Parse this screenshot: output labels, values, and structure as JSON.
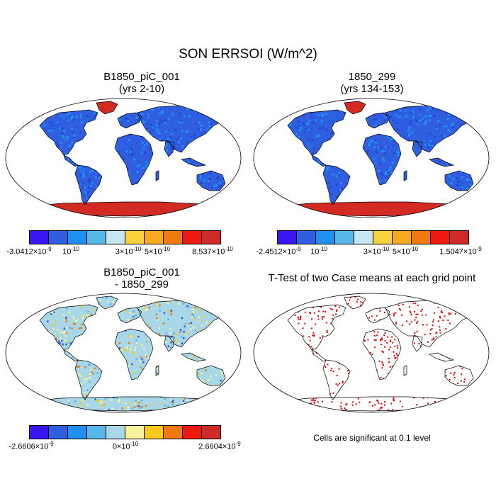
{
  "title": "SON ERRSOI (W/m^2)",
  "panels": {
    "top_left": {
      "title_line1": "B1850_piC_001",
      "title_line2": "(yrs 2-10)",
      "colorbar": {
        "colors": [
          "#3b14f2",
          "#2f5fe0",
          "#1f8ff0",
          "#56b8e8",
          "#c5e6f2",
          "#f8d23a",
          "#f6a920",
          "#f07a10",
          "#ee1a10",
          "#cf2a28"
        ],
        "labels": [
          {
            "mant": "-3.0412×10",
            "exp": "-9"
          },
          {
            "mant": "10",
            "exp": "-10"
          },
          {
            "mant": "3×10",
            "exp": "-10"
          },
          {
            "mant": "5×10",
            "exp": "-10"
          },
          {
            "mant": "8.537×10",
            "exp": "-10"
          }
        ]
      }
    },
    "top_right": {
      "title_line1": "1850_299",
      "title_line2": "(yrs 134-153)",
      "colorbar": {
        "colors": [
          "#3b14f2",
          "#2f5fe0",
          "#1f8ff0",
          "#56b8e8",
          "#c5e6f2",
          "#f8d23a",
          "#f6a920",
          "#f07a10",
          "#ee1a10",
          "#cf2a28"
        ],
        "labels": [
          {
            "mant": "-2.4512×10",
            "exp": "-9"
          },
          {
            "mant": "10",
            "exp": "-10"
          },
          {
            "mant": "3×10",
            "exp": "-10"
          },
          {
            "mant": "5×10",
            "exp": "-10"
          },
          {
            "mant": "1.5047×10",
            "exp": "-9"
          }
        ]
      }
    },
    "bottom_left": {
      "title_line1": "B1850_piC_001",
      "title_line2": "- 1850_299",
      "colorbar": {
        "colors": [
          "#3b14f2",
          "#2f5fe0",
          "#1f8ff0",
          "#56b8e8",
          "#a8d8e8",
          "#f8f29a",
          "#f8c820",
          "#f07a10",
          "#ee1a10",
          "#cf2a28"
        ],
        "labels": [
          {
            "mant": "-2.6606×10",
            "exp": "-9"
          },
          {
            "mant": "0×10",
            "exp": "-10"
          },
          {
            "mant": "2.6604×10",
            "exp": "-9"
          }
        ]
      }
    },
    "bottom_right": {
      "title_line1": "T-Test of two Case means at each grid point",
      "note": "Cells are significant at 0.1 level",
      "marker_color": "#dd0000"
    }
  },
  "colors": {
    "land_blue": "#2f5fe0",
    "land_blue_light": "#1f8ff0",
    "antarctica_red": "#d42a24",
    "greenland_red": "#d42a24",
    "diff_base": "#a8d8e8",
    "diff_yellow": "#f8f29a"
  }
}
